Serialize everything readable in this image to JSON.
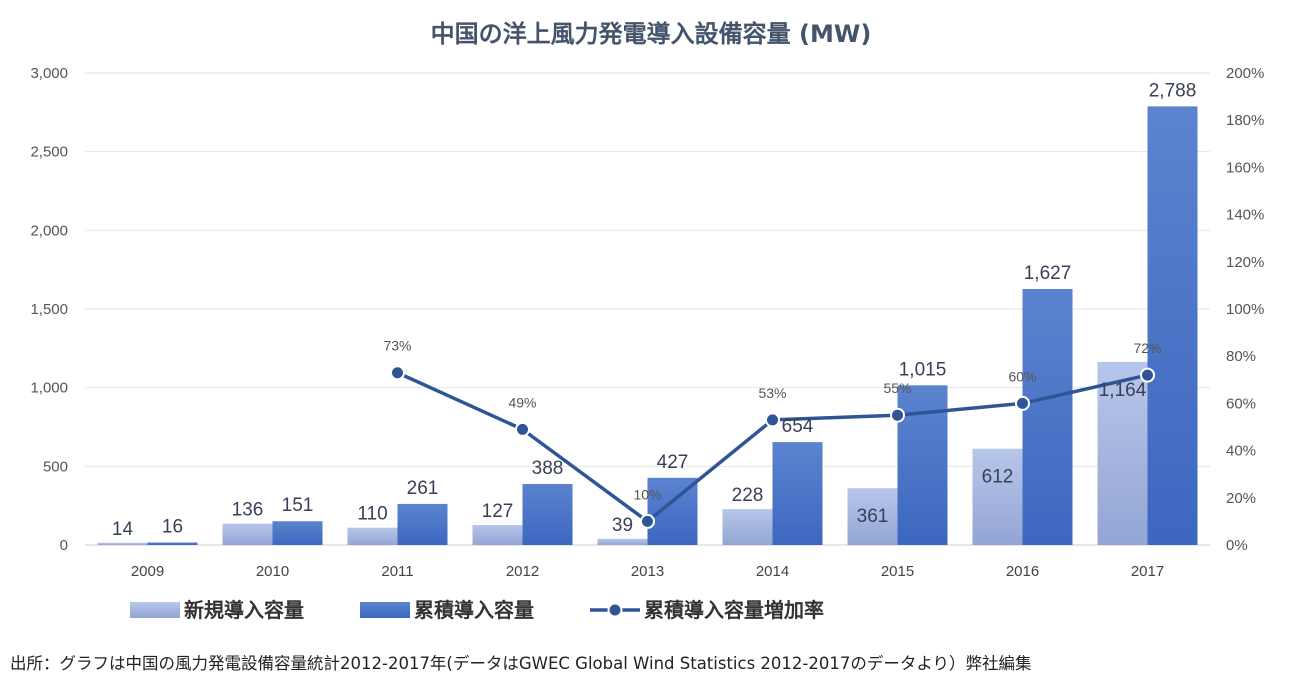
{
  "chart_data": {
    "type": "bar",
    "title": "中国の洋上風力発電導入設備容量 (MW)",
    "categories": [
      "2009",
      "2010",
      "2011",
      "2012",
      "2013",
      "2014",
      "2015",
      "2016",
      "2017"
    ],
    "series": [
      {
        "name": "新規導入容量",
        "type": "bar",
        "axis": "left",
        "color": "#a9b9e0",
        "values": [
          14,
          136,
          110,
          127,
          39,
          228,
          361,
          612,
          1164
        ]
      },
      {
        "name": "累積導入容量",
        "type": "bar",
        "axis": "left",
        "color": "#4472c4",
        "values": [
          16,
          151,
          261,
          388,
          427,
          654,
          1015,
          1627,
          2788
        ]
      },
      {
        "name": "累積導入容量増加率",
        "type": "line",
        "axis": "right",
        "color": "#2f5597",
        "values": [
          null,
          null,
          73,
          49,
          10,
          53,
          55,
          60,
          72
        ]
      }
    ],
    "ylim_left": [
      0,
      3000
    ],
    "yticks_left": [
      "0",
      "500",
      "1,000",
      "1,500",
      "2,000",
      "2,500",
      "3,000"
    ],
    "ylim_right": [
      0,
      200
    ],
    "yticks_right": [
      "0%",
      "20%",
      "40%",
      "60%",
      "80%",
      "100%",
      "120%",
      "140%",
      "160%",
      "180%",
      "200%"
    ],
    "bar_labels_new": [
      "14",
      "136",
      "110",
      "127",
      "39",
      "228",
      "361",
      "612",
      "1,164"
    ],
    "bar_labels_cum": [
      "16",
      "151",
      "261",
      "388",
      "427",
      "654",
      "1,015",
      "1,627",
      "2,788"
    ],
    "pct_labels": [
      "",
      "",
      "73%",
      "49%",
      "10%",
      "53%",
      "55%",
      "60%",
      "72%"
    ],
    "grid": true,
    "legend_position": "bottom-left"
  },
  "source_note": "出所：グラフは中国の風力発電設備容量統計2012-2017年(データはGWEC Global Wind Statistics 2012-2017のデータより）弊社編集"
}
